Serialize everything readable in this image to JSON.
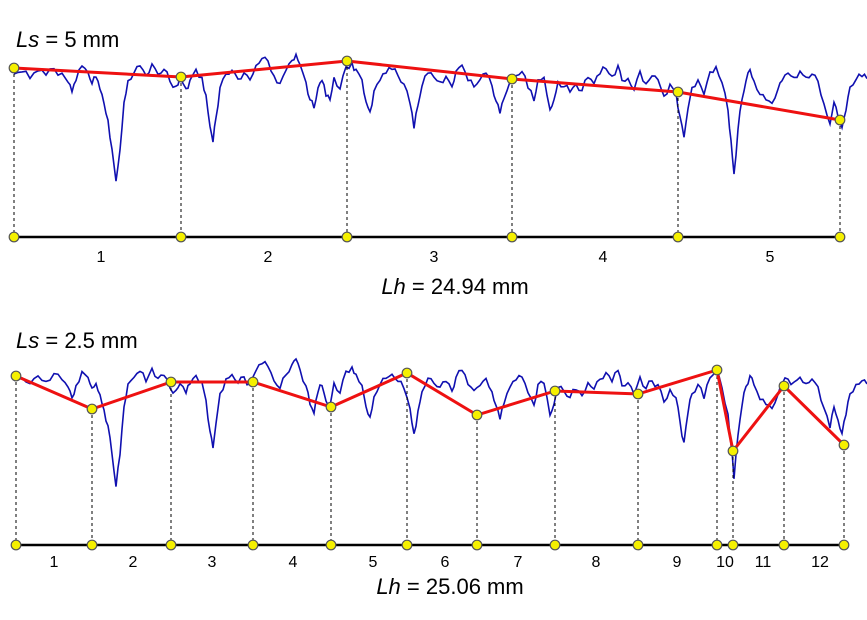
{
  "colors": {
    "profile": "#1010b0",
    "polyline": "#ee1111",
    "node_fill": "#f5f000",
    "node_stroke": "#555555",
    "baseline": "#000000"
  },
  "panels": [
    {
      "ls_var": "Ls",
      "ls_rest": " = 5 mm",
      "lh_var": "Lh",
      "lh_rest": " = 24.94 mm",
      "segments": [
        "1",
        "2",
        "3",
        "4",
        "5"
      ]
    },
    {
      "ls_var": "Ls",
      "ls_rest": " = 2.5 mm",
      "lh_var": "Lh",
      "lh_rest": " = 25.06 mm",
      "segments": [
        "1",
        "2",
        "3",
        "4",
        "5",
        "6",
        "7",
        "8",
        "9",
        "10",
        "11",
        "12"
      ]
    }
  ]
}
